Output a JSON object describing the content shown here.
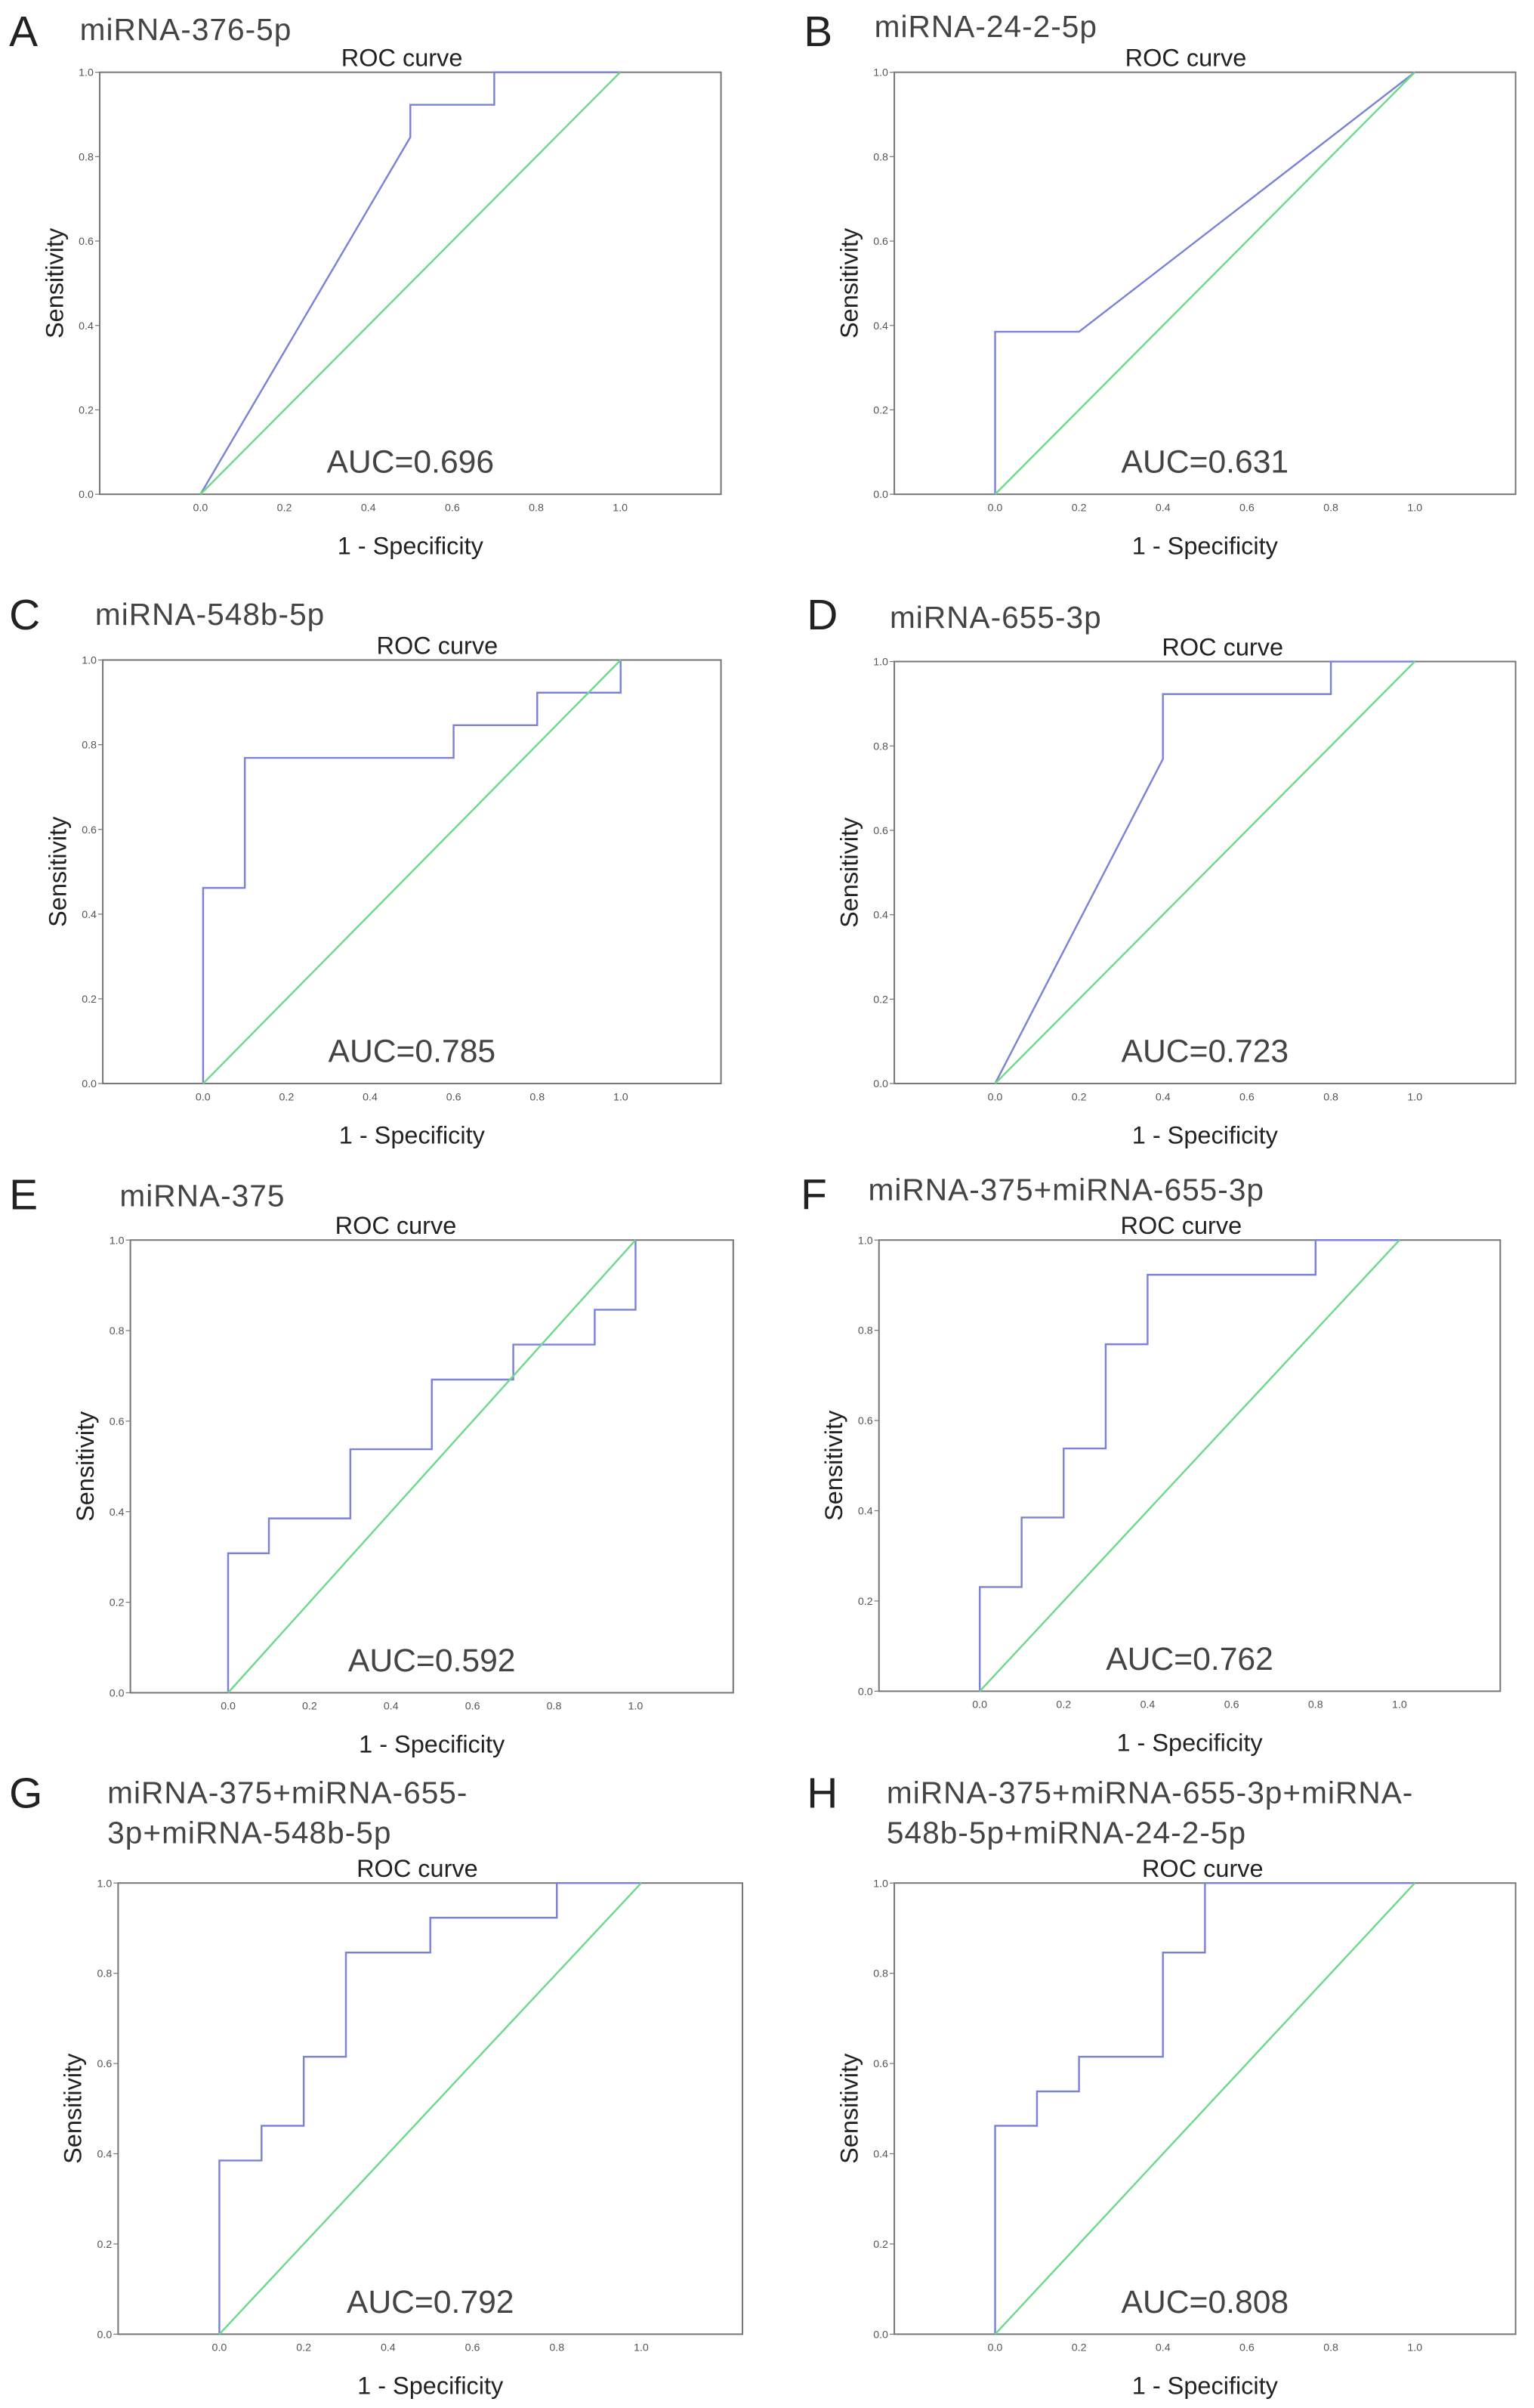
{
  "colors": {
    "curve": "#7b83d6",
    "reference": "#6fd98a",
    "frame": "#777777"
  },
  "chart_data": [
    {
      "type": "line",
      "panel": "A",
      "title": "miRNA-376-5p",
      "subtitle": "ROC curve",
      "xlabel": "1 - Specificity",
      "ylabel": "Sensitivity",
      "auc_label": "AUC=0.696",
      "xlim": [
        -0.24,
        1.24
      ],
      "ylim": [
        0,
        1
      ],
      "xticks": [
        "0.0",
        "0.2",
        "0.4",
        "0.6",
        "0.8",
        "1.0"
      ],
      "yticks": [
        "0.0",
        "0.2",
        "0.4",
        "0.6",
        "0.8",
        "1.0"
      ],
      "series": [
        {
          "name": "ROC",
          "x": [
            0,
            0.5,
            0.5,
            0.7,
            0.7,
            1
          ],
          "y": [
            0,
            0.846,
            0.923,
            0.923,
            1,
            1
          ]
        },
        {
          "name": "Reference",
          "x": [
            0,
            1
          ],
          "y": [
            0,
            1
          ]
        }
      ]
    },
    {
      "type": "line",
      "panel": "B",
      "title": "miRNA-24-2-5p",
      "subtitle": "ROC curve",
      "xlabel": "1 - Specificity",
      "ylabel": "Sensitivity",
      "auc_label": "AUC=0.631",
      "xlim": [
        -0.24,
        1.24
      ],
      "ylim": [
        0,
        1
      ],
      "xticks": [
        "0.0",
        "0.2",
        "0.4",
        "0.6",
        "0.8",
        "1.0"
      ],
      "yticks": [
        "0.0",
        "0.2",
        "0.4",
        "0.6",
        "0.8",
        "1.0"
      ],
      "series": [
        {
          "name": "ROC",
          "x": [
            0,
            0,
            0.2,
            1
          ],
          "y": [
            0,
            0.385,
            0.385,
            1
          ]
        },
        {
          "name": "Reference",
          "x": [
            0,
            1
          ],
          "y": [
            0,
            1
          ]
        }
      ]
    },
    {
      "type": "line",
      "panel": "C",
      "title": "miRNA-548b-5p",
      "subtitle": "ROC curve",
      "xlabel": "1 - Specificity",
      "ylabel": "Sensitivity",
      "auc_label": "AUC=0.785",
      "xlim": [
        -0.24,
        1.24
      ],
      "ylim": [
        0,
        1
      ],
      "xticks": [
        "0.0",
        "0.2",
        "0.4",
        "0.6",
        "0.8",
        "1.0"
      ],
      "yticks": [
        "0.0",
        "0.2",
        "0.4",
        "0.6",
        "0.8",
        "1.0"
      ],
      "series": [
        {
          "name": "ROC",
          "x": [
            0,
            0,
            0.1,
            0.1,
            0.6,
            0.6,
            0.8,
            0.8,
            1,
            1
          ],
          "y": [
            0,
            0.462,
            0.462,
            0.769,
            0.769,
            0.846,
            0.846,
            0.923,
            0.923,
            1
          ]
        },
        {
          "name": "Reference",
          "x": [
            0,
            1
          ],
          "y": [
            0,
            1
          ]
        }
      ]
    },
    {
      "type": "line",
      "panel": "D",
      "title": "miRNA-655-3p",
      "subtitle": "ROC curve",
      "xlabel": "1 - Specificity",
      "ylabel": "Sensitivity",
      "auc_label": "AUC=0.723",
      "xlim": [
        -0.24,
        1.24
      ],
      "ylim": [
        0,
        1
      ],
      "xticks": [
        "0.0",
        "0.2",
        "0.4",
        "0.6",
        "0.8",
        "1.0"
      ],
      "yticks": [
        "0.0",
        "0.2",
        "0.4",
        "0.6",
        "0.8",
        "1.0"
      ],
      "series": [
        {
          "name": "ROC",
          "x": [
            0,
            0.4,
            0.4,
            0.8,
            0.8,
            1
          ],
          "y": [
            0,
            0.769,
            0.923,
            0.923,
            1,
            1
          ]
        },
        {
          "name": "Reference",
          "x": [
            0,
            1
          ],
          "y": [
            0,
            1
          ]
        }
      ]
    },
    {
      "type": "line",
      "panel": "E",
      "title": "miRNA-375",
      "subtitle": "ROC curve",
      "xlabel": "1 - Specificity",
      "ylabel": "Sensitivity",
      "auc_label": "AUC=0.592",
      "xlim": [
        -0.24,
        1.24
      ],
      "ylim": [
        0,
        1
      ],
      "xticks": [
        "0.0",
        "0.2",
        "0.4",
        "0.6",
        "0.8",
        "1.0"
      ],
      "yticks": [
        "0.0",
        "0.2",
        "0.4",
        "0.6",
        "0.8",
        "1.0"
      ],
      "series": [
        {
          "name": "ROC",
          "x": [
            0,
            0,
            0.1,
            0.1,
            0.3,
            0.3,
            0.5,
            0.5,
            0.7,
            0.7,
            0.9,
            0.9,
            1,
            1
          ],
          "y": [
            0,
            0.308,
            0.308,
            0.385,
            0.385,
            0.538,
            0.538,
            0.692,
            0.692,
            0.769,
            0.769,
            0.846,
            0.846,
            1
          ]
        },
        {
          "name": "Reference",
          "x": [
            0,
            1
          ],
          "y": [
            0,
            1
          ]
        }
      ]
    },
    {
      "type": "line",
      "panel": "F",
      "title": "miRNA-375+miRNA-655-3p",
      "subtitle": "ROC curve",
      "xlabel": "1 - Specificity",
      "ylabel": "Sensitivity",
      "auc_label": "AUC=0.762",
      "xlim": [
        -0.24,
        1.24
      ],
      "ylim": [
        0,
        1
      ],
      "xticks": [
        "0.0",
        "0.2",
        "0.4",
        "0.6",
        "0.8",
        "1.0"
      ],
      "yticks": [
        "0.0",
        "0.2",
        "0.4",
        "0.6",
        "0.8",
        "1.0"
      ],
      "series": [
        {
          "name": "ROC",
          "x": [
            0,
            0,
            0.1,
            0.1,
            0.2,
            0.2,
            0.3,
            0.3,
            0.4,
            0.4,
            0.8,
            0.8,
            1
          ],
          "y": [
            0,
            0.231,
            0.231,
            0.385,
            0.385,
            0.538,
            0.538,
            0.769,
            0.769,
            0.923,
            0.923,
            1,
            1
          ]
        },
        {
          "name": "Reference",
          "x": [
            0,
            1
          ],
          "y": [
            0,
            1
          ]
        }
      ]
    },
    {
      "type": "line",
      "panel": "G",
      "title": "miRNA-375+miRNA-655-",
      "title2": "3p+miRNA-548b-5p",
      "subtitle": "ROC curve",
      "xlabel": "1 - Specificity",
      "ylabel": "Sensitivity",
      "auc_label": "AUC=0.792",
      "xlim": [
        -0.24,
        1.24
      ],
      "ylim": [
        0,
        1
      ],
      "xticks": [
        "0.0",
        "0.2",
        "0.4",
        "0.6",
        "0.8",
        "1.0"
      ],
      "yticks": [
        "0.0",
        "0.2",
        "0.4",
        "0.6",
        "0.8",
        "1.0"
      ],
      "series": [
        {
          "name": "ROC",
          "x": [
            0,
            0,
            0.1,
            0.1,
            0.2,
            0.2,
            0.3,
            0.3,
            0.5,
            0.5,
            0.8,
            0.8,
            1
          ],
          "y": [
            0,
            0.385,
            0.385,
            0.462,
            0.462,
            0.615,
            0.615,
            0.846,
            0.846,
            0.923,
            0.923,
            1,
            1
          ]
        },
        {
          "name": "Reference",
          "x": [
            0,
            1
          ],
          "y": [
            0,
            1
          ]
        }
      ]
    },
    {
      "type": "line",
      "panel": "H",
      "title": "miRNA-375+miRNA-655-3p+miRNA-",
      "title2": "548b-5p+miRNA-24-2-5p",
      "subtitle": "ROC curve",
      "xlabel": "1 - Specificity",
      "ylabel": "Sensitivity",
      "auc_label": "AUC=0.808",
      "xlim": [
        -0.24,
        1.24
      ],
      "ylim": [
        0,
        1
      ],
      "xticks": [
        "0.0",
        "0.2",
        "0.4",
        "0.6",
        "0.8",
        "1.0"
      ],
      "yticks": [
        "0.0",
        "0.2",
        "0.4",
        "0.6",
        "0.8",
        "1.0"
      ],
      "series": [
        {
          "name": "ROC",
          "x": [
            0,
            0,
            0.1,
            0.1,
            0.2,
            0.2,
            0.4,
            0.4,
            0.5,
            0.5,
            1
          ],
          "y": [
            0,
            0.462,
            0.462,
            0.538,
            0.538,
            0.615,
            0.615,
            0.846,
            0.846,
            1,
            1
          ]
        },
        {
          "name": "Reference",
          "x": [
            0,
            1
          ],
          "y": [
            0,
            1
          ]
        }
      ]
    }
  ]
}
